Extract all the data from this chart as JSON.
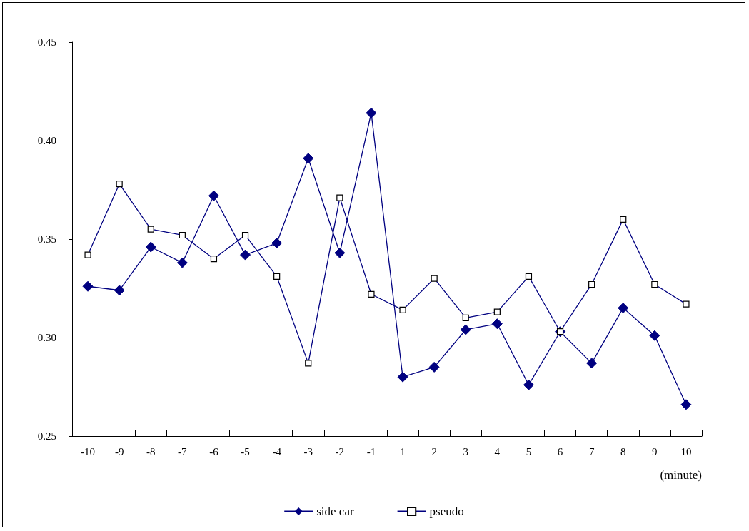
{
  "chart_data": {
    "type": "line",
    "xlabel": "(minute)",
    "categories": [
      "-10",
      "-9",
      "-8",
      "-7",
      "-6",
      "-5",
      "-4",
      "-3",
      "-2",
      "-1",
      "1",
      "2",
      "3",
      "4",
      "5",
      "6",
      "7",
      "8",
      "9",
      "10"
    ],
    "series": [
      {
        "name": "side car",
        "color": "#000080",
        "marker": "diamond",
        "values": [
          0.326,
          0.324,
          0.346,
          0.338,
          0.372,
          0.342,
          0.348,
          0.391,
          0.343,
          0.414,
          0.28,
          0.285,
          0.304,
          0.307,
          0.276,
          0.303,
          0.287,
          0.315,
          0.301,
          0.266
        ]
      },
      {
        "name": "pseudo",
        "color": "#000080",
        "marker": "square",
        "values": [
          0.342,
          0.378,
          0.355,
          0.352,
          0.34,
          0.352,
          0.331,
          0.287,
          0.371,
          0.322,
          0.314,
          0.33,
          0.31,
          0.313,
          0.331,
          0.303,
          0.327,
          0.36,
          0.327,
          0.317
        ]
      }
    ],
    "ylim": [
      0.25,
      0.45
    ],
    "yticks": [
      {
        "value": 0.25,
        "label": "0.25"
      },
      {
        "value": 0.3,
        "label": "0.30"
      },
      {
        "value": 0.35,
        "label": "0.35"
      },
      {
        "value": 0.4,
        "label": "0.40"
      },
      {
        "value": 0.45,
        "label": "0.45"
      }
    ],
    "grid": false,
    "legend": "bottom",
    "line_style": "solid"
  }
}
